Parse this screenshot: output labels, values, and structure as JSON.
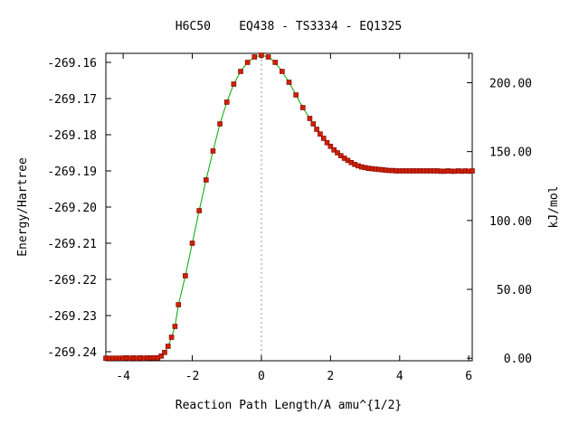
{
  "chart_data": {
    "type": "line",
    "title": "H6C50    EQ438 - TS3334 - EQ1325",
    "xlabel": "Reaction Path Length/A amu^{1/2}",
    "ylabel": "Energy/Hartree",
    "y2label": "kJ/mol",
    "xlim": [
      -4.5,
      6.1
    ],
    "ylim": [
      -269.2425,
      -269.1575
    ],
    "x_ticks": [
      -4,
      -2,
      0,
      2,
      4,
      6
    ],
    "x_tick_labels": [
      "-4",
      "-2",
      "0",
      "2",
      "4",
      "6"
    ],
    "y_ticks": [
      -269.16,
      -269.17,
      -269.18,
      -269.19,
      -269.2,
      -269.21,
      -269.22,
      -269.23,
      -269.24
    ],
    "y_tick_labels": [
      "-269.16",
      "-269.17",
      "-269.18",
      "-269.19",
      "-269.20",
      "-269.21",
      "-269.22",
      "-269.23",
      "-269.24"
    ],
    "y2_reference_energy": -269.2418,
    "y2_ticks": [
      0,
      50,
      100,
      150,
      200
    ],
    "y2_tick_labels": [
      "0.00",
      "50.00",
      "100.00",
      "150.00",
      "200.00"
    ],
    "ts_marker_x": 0,
    "colors": {
      "line": "#00aa00",
      "marker": "#cc2200",
      "marker_edge": "#800000",
      "ts_line": "#999999"
    },
    "series": [
      {
        "x": [
          -4.5,
          -4.4,
          -4.3,
          -4.2,
          -4.1,
          -4.0,
          -3.9,
          -3.8,
          -3.7,
          -3.6,
          -3.5,
          -3.4,
          -3.3,
          -3.2,
          -3.1,
          -3.0,
          -2.9,
          -2.8,
          -2.7,
          -2.6,
          -2.5,
          -2.4,
          -2.2,
          -2.0,
          -1.8,
          -1.6,
          -1.4,
          -1.2,
          -1.0,
          -0.8,
          -0.6,
          -0.4,
          -0.2,
          0.0,
          0.2,
          0.4,
          0.6,
          0.8,
          1.0,
          1.2,
          1.4,
          1.5,
          1.6,
          1.7,
          1.8,
          1.9,
          2.0,
          2.1,
          2.2,
          2.3,
          2.4,
          2.5,
          2.6,
          2.7,
          2.8,
          2.9,
          3.0,
          3.1,
          3.2,
          3.3,
          3.4,
          3.5,
          3.6,
          3.7,
          3.8,
          3.9,
          4.0,
          4.1,
          4.2,
          4.3,
          4.4,
          4.5,
          4.6,
          4.7,
          4.8,
          4.9,
          5.0,
          5.1,
          5.2,
          5.3,
          5.4,
          5.5,
          5.6,
          5.7,
          5.8,
          5.9,
          6.0,
          6.1
        ],
        "y": [
          -269.2418,
          -269.2418,
          -269.2418,
          -269.2418,
          -269.2418,
          -269.2418,
          -269.2417,
          -269.2418,
          -269.2417,
          -269.2418,
          -269.2417,
          -269.2418,
          -269.2417,
          -269.2417,
          -269.2417,
          -269.2417,
          -269.2412,
          -269.2402,
          -269.2385,
          -269.236,
          -269.233,
          -269.227,
          -269.219,
          -269.21,
          -269.201,
          -269.1925,
          -269.1845,
          -269.177,
          -269.171,
          -269.166,
          -269.1625,
          -269.16,
          -269.1585,
          -269.158,
          -269.1585,
          -269.16,
          -269.1625,
          -269.1655,
          -269.169,
          -269.1725,
          -269.1755,
          -269.177,
          -269.1785,
          -269.1798,
          -269.181,
          -269.1822,
          -269.1832,
          -269.1842,
          -269.185,
          -269.1858,
          -269.1865,
          -269.1871,
          -269.1877,
          -269.1882,
          -269.1886,
          -269.1889,
          -269.1891,
          -269.1893,
          -269.1894,
          -269.1895,
          -269.1896,
          -269.1897,
          -269.1898,
          -269.1899,
          -269.1899,
          -269.19,
          -269.19,
          -269.19,
          -269.19,
          -269.19,
          -269.19,
          -269.19,
          -269.19,
          -269.19,
          -269.19,
          -269.19,
          -269.19,
          -269.19,
          -269.1901,
          -269.1901,
          -269.19,
          -269.1901,
          -269.1901,
          -269.19,
          -269.1901,
          -269.19,
          -269.1901,
          -269.19
        ]
      }
    ]
  }
}
